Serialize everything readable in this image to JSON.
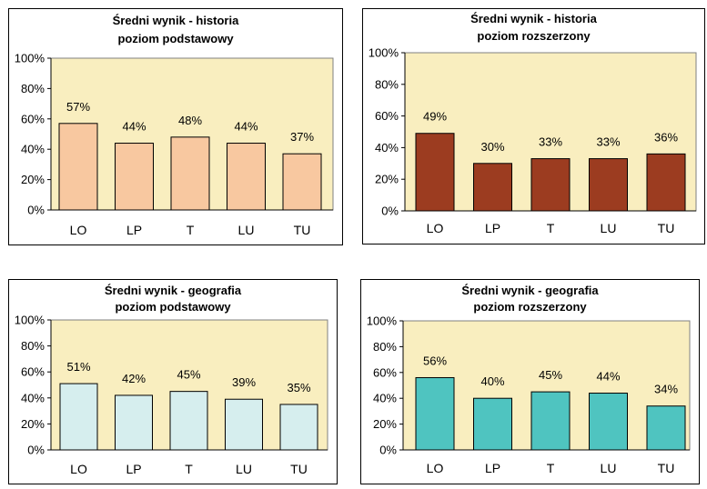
{
  "chart_data": [
    {
      "type": "bar",
      "title": "Średni wynik  - historia",
      "subtitle": "poziom podstawowy",
      "categories": [
        "LO",
        "LP",
        "T",
        "LU",
        "TU"
      ],
      "values": [
        57,
        44,
        48,
        44,
        37
      ],
      "data_labels": [
        "57%",
        "44%",
        "48%",
        "44%",
        "37%"
      ],
      "ylim": [
        0,
        100
      ],
      "yticks": [
        "0%",
        "20%",
        "40%",
        "60%",
        "80%",
        "100%"
      ],
      "bar_color": "#f8c8a0",
      "plot_bg": "#f9eebf",
      "xlabel": "",
      "ylabel": ""
    },
    {
      "type": "bar",
      "title": "Średni wynik  - historia",
      "subtitle": "poziom rozszerzony",
      "categories": [
        "LO",
        "LP",
        "T",
        "LU",
        "TU"
      ],
      "values": [
        49,
        30,
        33,
        33,
        36
      ],
      "data_labels": [
        "49%",
        "30%",
        "33%",
        "33%",
        "36%"
      ],
      "ylim": [
        0,
        100
      ],
      "yticks": [
        "0%",
        "20%",
        "40%",
        "60%",
        "80%",
        "100%"
      ],
      "bar_color": "#9c3c20",
      "plot_bg": "#f9eebf",
      "xlabel": "",
      "ylabel": ""
    },
    {
      "type": "bar",
      "title": "Średni wynik  - geografia",
      "subtitle": "poziom podstawowy",
      "categories": [
        "LO",
        "LP",
        "T",
        "LU",
        "TU"
      ],
      "values": [
        51,
        42,
        45,
        39,
        35
      ],
      "data_labels": [
        "51%",
        "42%",
        "45%",
        "39%",
        "35%"
      ],
      "ylim": [
        0,
        100
      ],
      "yticks": [
        "0%",
        "20%",
        "40%",
        "60%",
        "80%",
        "100%"
      ],
      "bar_color": "#d6eeee",
      "plot_bg": "#f9eebf",
      "xlabel": "",
      "ylabel": ""
    },
    {
      "type": "bar",
      "title": "Średni wynik  - geografia",
      "subtitle": "poziom rozszerzony",
      "categories": [
        "LO",
        "LP",
        "T",
        "LU",
        "TU"
      ],
      "values": [
        56,
        40,
        45,
        44,
        34
      ],
      "data_labels": [
        "56%",
        "40%",
        "45%",
        "44%",
        "34%"
      ],
      "ylim": [
        0,
        100
      ],
      "yticks": [
        "0%",
        "20%",
        "40%",
        "60%",
        "80%",
        "100%"
      ],
      "bar_color": "#4fc4c0",
      "plot_bg": "#f9eebf",
      "xlabel": "",
      "ylabel": ""
    }
  ]
}
